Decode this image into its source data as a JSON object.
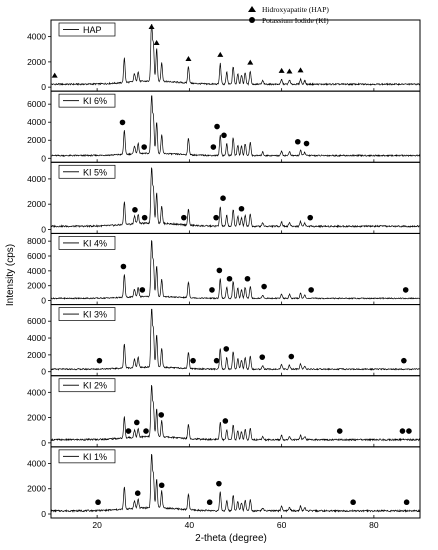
{
  "chart_data": {
    "type": "line",
    "xlabel": "2-theta (degree)",
    "ylabel": "Intensity (cps)",
    "xlim": [
      10,
      90
    ],
    "x_ticks": [
      20,
      40,
      60,
      80
    ],
    "legend": [
      {
        "marker": "triangle",
        "label": "Hidroxyapatite (HAP)"
      },
      {
        "marker": "circle",
        "label": "Potassium Iodide (KI)"
      }
    ],
    "peaks": [
      {
        "x": 25.9,
        "h": 0.42
      },
      {
        "x": 28.1,
        "h": 0.14
      },
      {
        "x": 28.9,
        "h": 0.17
      },
      {
        "x": 31.8,
        "h": 1.0
      },
      {
        "x": 32.2,
        "h": 0.62
      },
      {
        "x": 32.9,
        "h": 0.55
      },
      {
        "x": 34.0,
        "h": 0.32
      },
      {
        "x": 39.8,
        "h": 0.28
      },
      {
        "x": 46.7,
        "h": 0.35
      },
      {
        "x": 48.1,
        "h": 0.2
      },
      {
        "x": 49.5,
        "h": 0.3
      },
      {
        "x": 50.5,
        "h": 0.18
      },
      {
        "x": 51.3,
        "h": 0.16
      },
      {
        "x": 52.1,
        "h": 0.2
      },
      {
        "x": 53.2,
        "h": 0.22
      },
      {
        "x": 55.9,
        "h": 0.06
      },
      {
        "x": 60.0,
        "h": 0.08
      },
      {
        "x": 61.7,
        "h": 0.07
      },
      {
        "x": 64.1,
        "h": 0.09
      },
      {
        "x": 65.0,
        "h": 0.06
      }
    ],
    "panels": [
      {
        "name": "HAP",
        "ymax": 5000,
        "yticks": [
          0,
          2000,
          4000
        ],
        "peak_scale": 4700,
        "baseline": 230,
        "hap_markers": [
          10.8,
          31.8,
          32.9,
          39.8,
          46.7,
          53.2,
          60.0,
          61.7,
          64.1
        ],
        "ki_markers": []
      },
      {
        "name": "KI 6%",
        "ymax": 7000,
        "yticks": [
          0,
          2000,
          4000,
          6000
        ],
        "peak_scale": 6500,
        "baseline": 300,
        "hap_markers": [],
        "ki_markers": [
          25.5,
          30.2,
          45.2,
          46.0,
          47.5,
          63.5,
          65.4
        ]
      },
      {
        "name": "KI 5%",
        "ymax": 5000,
        "yticks": [
          0,
          2000,
          4000
        ],
        "peak_scale": 4400,
        "baseline": 250,
        "hap_markers": [],
        "ki_markers": [
          28.2,
          30.3,
          38.8,
          45.8,
          47.3,
          51.3,
          66.2
        ]
      },
      {
        "name": "KI 4%",
        "ymax": 8500,
        "yticks": [
          0,
          2000,
          4000,
          6000,
          8000
        ],
        "peak_scale": 7500,
        "baseline": 300,
        "hap_markers": [],
        "ki_markers": [
          25.7,
          29.8,
          44.9,
          46.5,
          48.7,
          52.6,
          56.2,
          66.4,
          86.9
        ]
      },
      {
        "name": "KI 3%",
        "ymax": 7500,
        "yticks": [
          0,
          2000,
          4000,
          6000
        ],
        "peak_scale": 7000,
        "baseline": 300,
        "hap_markers": [],
        "ki_markers": [
          20.5,
          40.8,
          45.9,
          48.0,
          55.8,
          62.1,
          86.5
        ]
      },
      {
        "name": "KI 2%",
        "ymax": 5000,
        "yticks": [
          0,
          2000,
          4000
        ],
        "peak_scale": 4000,
        "baseline": 250,
        "hap_markers": [],
        "ki_markers": [
          26.8,
          28.6,
          30.6,
          33.9,
          47.8,
          72.6,
          86.2,
          87.6
        ]
      },
      {
        "name": "KI 1%",
        "ymax": 5000,
        "yticks": [
          0,
          2000,
          4000
        ],
        "peak_scale": 4200,
        "baseline": 250,
        "hap_markers": [],
        "ki_markers": [
          20.2,
          28.8,
          34.0,
          44.4,
          46.4,
          75.5,
          87.1
        ]
      }
    ]
  }
}
